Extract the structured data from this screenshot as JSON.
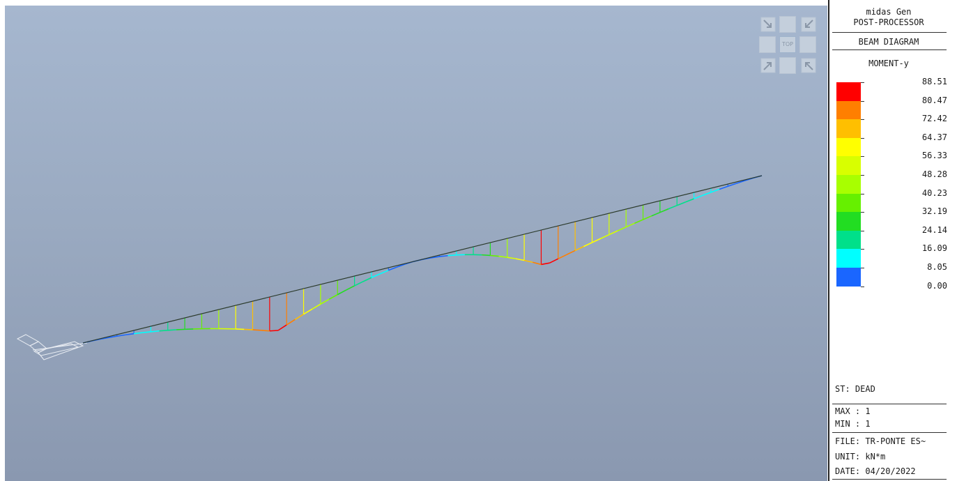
{
  "app": {
    "title": "midas Gen",
    "subtitle": "POST-PROCESSOR",
    "mode": "BEAM DIAGRAM",
    "component": "MOMENT-y"
  },
  "view_cube": {
    "center_label": "TOP"
  },
  "legend": {
    "levels": [
      "88.51",
      "80.47",
      "72.42",
      "64.37",
      "56.33",
      "48.28",
      "40.23",
      "32.19",
      "24.14",
      "16.09",
      "8.05",
      "0.00"
    ],
    "colors": [
      "#ff0000",
      "#ff7f00",
      "#ffbf00",
      "#ffff00",
      "#d8ff00",
      "#a8ff00",
      "#66f000",
      "#22dd22",
      "#00e08a",
      "#00ffff",
      "#1a66ff"
    ]
  },
  "info": {
    "step": "ST: DEAD",
    "max": "MAX : 1",
    "min": "MIN : 1",
    "file": "FILE: TR-PONTE ES~",
    "unit": "UNIT: kN*m",
    "date": "DATE: 04/20/2022"
  },
  "diagram": {
    "type": "beam moment diagram",
    "spans": [
      {
        "peak_moment": 88.51
      },
      {
        "peak_moment": 88.51
      }
    ]
  }
}
